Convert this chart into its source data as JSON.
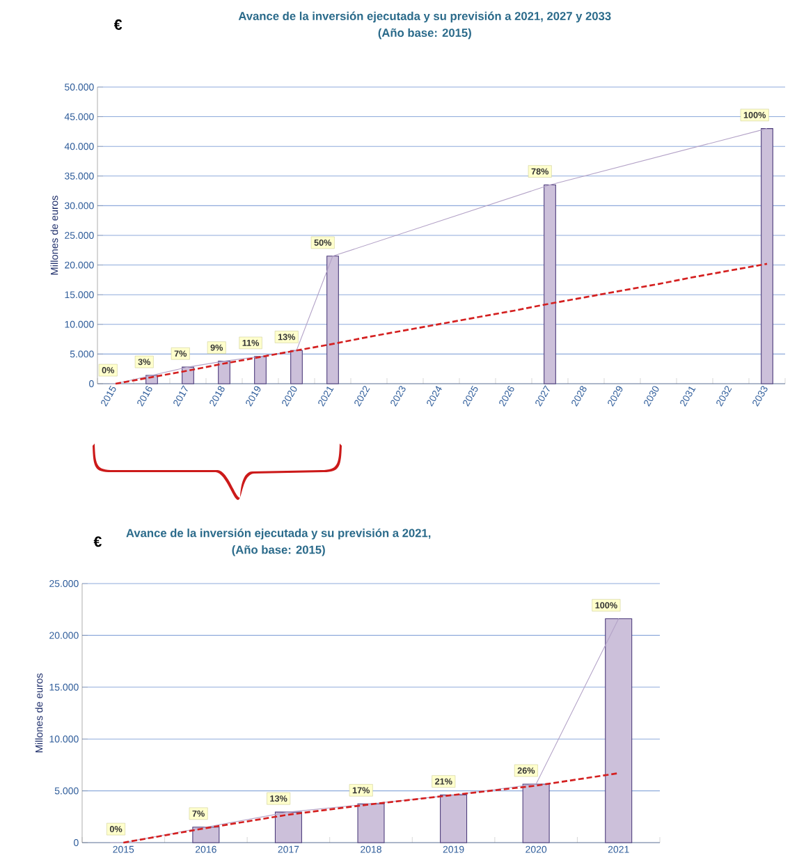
{
  "chart_data": [
    {
      "type": "bar",
      "title": "Avance de la inversión ejecutada y su previsión a 2021, 2027 y 2033",
      "subtitle": "(Año base: 2015)",
      "ylabel": "Millones de euros",
      "annotations": [
        "€",
        {
          "text": "0%",
          "x": "2015",
          "y": 0
        },
        {
          "text": "3%",
          "x": "2016",
          "y": 1400
        },
        {
          "text": "7%",
          "x": "2017",
          "y": 2800
        },
        {
          "text": "9%",
          "x": "2018",
          "y": 3800
        },
        {
          "text": "11%",
          "x": "2019",
          "y": 4600
        },
        {
          "text": "13%",
          "x": "2020",
          "y": 5600
        },
        {
          "text": "50%",
          "x": "2021",
          "y": 21500
        },
        {
          "text": "78%",
          "x": "2027",
          "y": 33500
        },
        {
          "text": "100%",
          "x": "2033",
          "y": 43000
        }
      ],
      "categories": [
        "2015",
        "2016",
        "2017",
        "2018",
        "2019",
        "2020",
        "2021",
        "2022",
        "2023",
        "2024",
        "2025",
        "2026",
        "2027",
        "2028",
        "2029",
        "2030",
        "2031",
        "2032",
        "2033"
      ],
      "ylim": [
        0,
        50000
      ],
      "yticks": [
        {
          "value": 0,
          "label": "0"
        },
        {
          "value": 5000,
          "label": "5.000"
        },
        {
          "value": 10000,
          "label": "10.000"
        },
        {
          "value": 15000,
          "label": "15.000"
        },
        {
          "value": 20000,
          "label": "20.000"
        },
        {
          "value": 25000,
          "label": "25.000"
        },
        {
          "value": 30000,
          "label": "30.000"
        },
        {
          "value": 35000,
          "label": "35.000"
        },
        {
          "value": 40000,
          "label": "40.000"
        },
        {
          "value": 45000,
          "label": "45.000"
        },
        {
          "value": 50000,
          "label": "50.000"
        }
      ],
      "grid": "y",
      "series": [
        {
          "type": "bar",
          "color": "#ccc0da",
          "values": [
            0,
            1400,
            2800,
            3800,
            4600,
            5600,
            21500,
            null,
            null,
            null,
            null,
            null,
            33500,
            null,
            null,
            null,
            null,
            null,
            43000
          ]
        },
        {
          "type": "line",
          "color": "#b3a2c7",
          "values": [
            0,
            1400,
            2800,
            3800,
            4600,
            5600,
            21500,
            null,
            null,
            null,
            null,
            null,
            33500,
            null,
            null,
            null,
            null,
            null,
            43000
          ]
        },
        {
          "type": "line",
          "color": "#d42020",
          "line_style": "dashed",
          "values": [
            0,
            1100,
            2200,
            3400,
            4500,
            5600,
            6700,
            7900,
            9000,
            10100,
            11200,
            12300,
            13500,
            14600,
            15700,
            16800,
            18000,
            19100,
            20200
          ]
        }
      ]
    },
    {
      "type": "bar",
      "title": "Avance de la inversión ejecutada y su previsión a 2021,",
      "subtitle": "(Año base: 2015)",
      "ylabel": "Millones de euros",
      "annotations": [
        "€",
        {
          "text": "0%",
          "x": "2015",
          "y": 0
        },
        {
          "text": "7%",
          "x": "2016",
          "y": 1500
        },
        {
          "text": "13%",
          "x": "2017",
          "y": 2950
        },
        {
          "text": "17%",
          "x": "2018",
          "y": 3750
        },
        {
          "text": "21%",
          "x": "2019",
          "y": 4600
        },
        {
          "text": "26%",
          "x": "2020",
          "y": 5650
        },
        {
          "text": "100%",
          "x": "2021",
          "y": 21600
        }
      ],
      "categories": [
        "2015",
        "2016",
        "2017",
        "2018",
        "2019",
        "2020",
        "2021"
      ],
      "ylim": [
        0,
        25000
      ],
      "yticks": [
        {
          "value": 0,
          "label": "0"
        },
        {
          "value": 5000,
          "label": "5.000"
        },
        {
          "value": 10000,
          "label": "10.000"
        },
        {
          "value": 15000,
          "label": "15.000"
        },
        {
          "value": 20000,
          "label": "20.000"
        },
        {
          "value": 25000,
          "label": "25.000"
        }
      ],
      "grid": "y",
      "series": [
        {
          "type": "bar",
          "color": "#ccc0da",
          "values": [
            0,
            1500,
            2950,
            3750,
            4600,
            5650,
            21600
          ]
        },
        {
          "type": "line",
          "color": "#b3a2c7",
          "values": [
            0,
            1500,
            2950,
            3750,
            4600,
            5650,
            21600
          ]
        },
        {
          "type": "line",
          "color": "#d42020",
          "line_style": "dashed",
          "values": [
            0,
            1400,
            2700,
            3700,
            4600,
            5500,
            6700
          ]
        }
      ]
    }
  ]
}
